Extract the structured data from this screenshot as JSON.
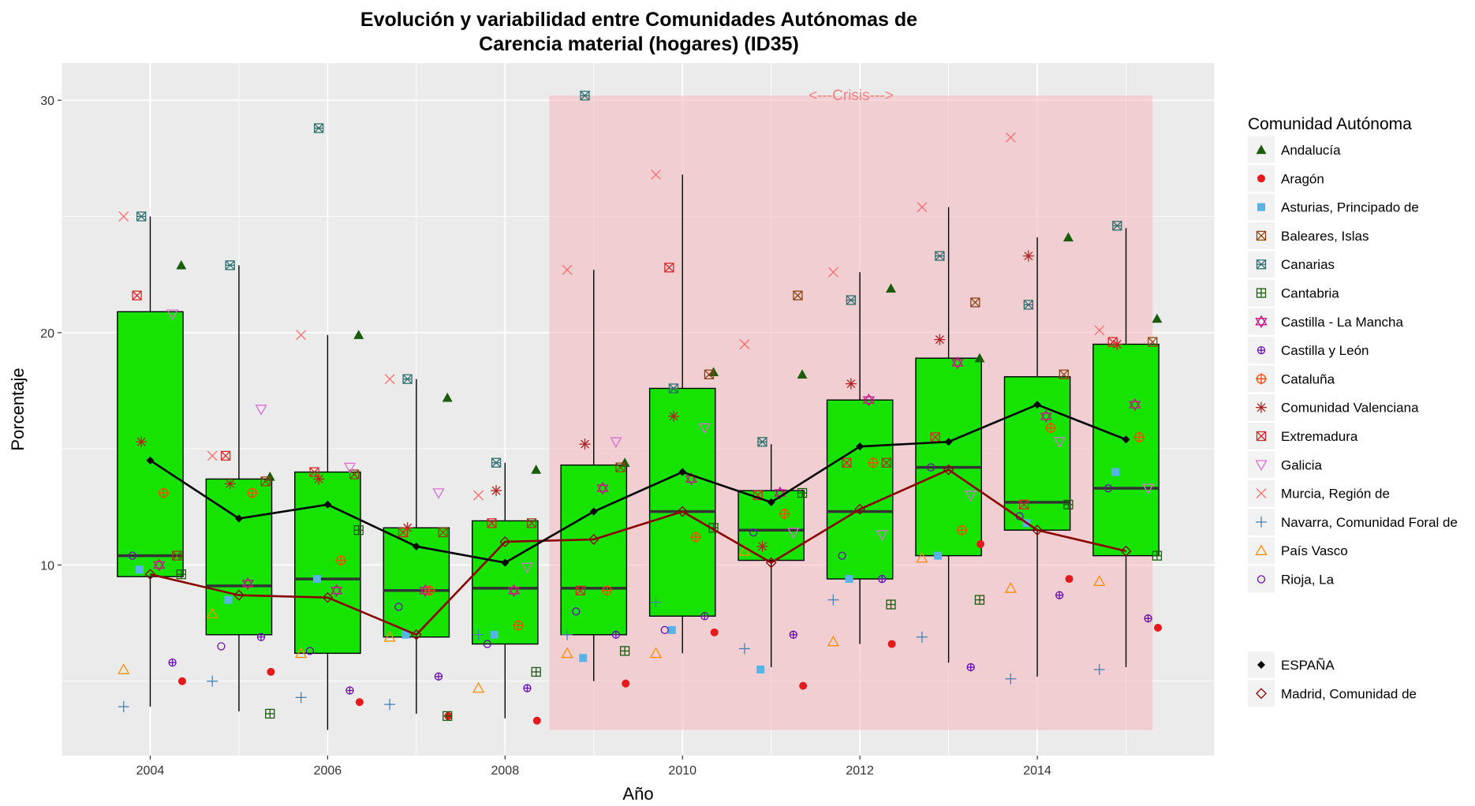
{
  "chart_data": {
    "type": "box",
    "title": [
      "Evolución y variabilidad entre Comunidades Autónomas de",
      "Carencia material (hogares) (ID35)"
    ],
    "xlabel": "Año",
    "ylabel": "Porcentaje",
    "xlim": [
      2003.0,
      2016.0
    ],
    "ylim": [
      1.8,
      31.6
    ],
    "x_ticks": [
      2004,
      2006,
      2008,
      2010,
      2012,
      2014
    ],
    "y_ticks": [
      10,
      20,
      30
    ],
    "grid": true,
    "legend_position": "right",
    "crisis_region": {
      "label": "<---Crisis--->",
      "x_from": 2008.5,
      "x_to": 2015.3,
      "y_from": 2.9,
      "y_to": 30.2,
      "color": "#f4b6bc"
    },
    "box_color": "#17e300",
    "boxes": [
      {
        "x": 2004,
        "q1": 9.5,
        "median": 10.4,
        "q3": 20.9,
        "whisker_low": 3.9,
        "whisker_high": 25.0
      },
      {
        "x": 2005,
        "q1": 7.0,
        "median": 9.1,
        "q3": 13.7,
        "whisker_low": 3.7,
        "whisker_high": 22.9
      },
      {
        "x": 2006,
        "q1": 6.2,
        "median": 9.4,
        "q3": 14.0,
        "whisker_low": 2.9,
        "whisker_high": 19.9
      },
      {
        "x": 2007,
        "q1": 6.9,
        "median": 8.9,
        "q3": 11.6,
        "whisker_low": 3.6,
        "whisker_high": 18.0
      },
      {
        "x": 2008,
        "q1": 6.6,
        "median": 9.0,
        "q3": 11.9,
        "whisker_low": 3.4,
        "whisker_high": 14.4
      },
      {
        "x": 2009,
        "q1": 7.0,
        "median": 9.0,
        "q3": 14.3,
        "whisker_low": 5.0,
        "whisker_high": 22.7
      },
      {
        "x": 2010,
        "q1": 7.8,
        "median": 12.3,
        "q3": 17.6,
        "whisker_low": 6.2,
        "whisker_high": 26.8
      },
      {
        "x": 2011,
        "q1": 10.2,
        "median": 11.5,
        "q3": 13.2,
        "whisker_low": 5.6,
        "whisker_high": 15.2
      },
      {
        "x": 2012,
        "q1": 9.4,
        "median": 12.3,
        "q3": 17.1,
        "whisker_low": 6.6,
        "whisker_high": 22.6
      },
      {
        "x": 2013,
        "q1": 10.4,
        "median": 14.2,
        "q3": 18.9,
        "whisker_low": 5.8,
        "whisker_high": 25.4
      },
      {
        "x": 2014,
        "q1": 11.5,
        "median": 12.7,
        "q3": 18.1,
        "whisker_low": 5.2,
        "whisker_high": 24.1
      },
      {
        "x": 2015,
        "q1": 10.4,
        "median": 13.3,
        "q3": 19.5,
        "whisker_low": 5.6,
        "whisker_high": 24.5
      }
    ],
    "lines": [
      {
        "name": "ESPAÑA",
        "color": "#000000",
        "marker": "diamond-filled",
        "x": [
          2004,
          2005,
          2006,
          2007,
          2008,
          2009,
          2010,
          2011,
          2012,
          2013,
          2014,
          2015
        ],
        "y": [
          14.5,
          12.0,
          12.6,
          10.8,
          10.1,
          12.3,
          14.0,
          12.7,
          15.1,
          15.3,
          16.9,
          15.4
        ]
      },
      {
        "name": "Madrid, Comunidad de",
        "color": "#8b0000",
        "marker": "diamond-open",
        "x": [
          2004,
          2005,
          2006,
          2007,
          2008,
          2009,
          2010,
          2011,
          2012,
          2013,
          2014,
          2015
        ],
        "y": [
          9.6,
          8.7,
          8.6,
          7.0,
          11.0,
          11.1,
          12.3,
          10.1,
          12.4,
          14.1,
          11.5,
          10.6
        ]
      }
    ],
    "series": [
      {
        "name": "Andalucía",
        "color": "#1a5c0a",
        "marker": "triangle-filled",
        "offset": 0.35,
        "x": [
          2004,
          2005,
          2006,
          2007,
          2008,
          2009,
          2010,
          2011,
          2012,
          2013,
          2014,
          2015
        ],
        "y": [
          22.9,
          13.8,
          19.9,
          17.2,
          14.1,
          14.4,
          18.3,
          18.2,
          21.9,
          18.9,
          24.1,
          20.6
        ]
      },
      {
        "name": "Aragón",
        "color": "#e41a1c",
        "marker": "circle-filled",
        "offset": 0.36,
        "x": [
          2004,
          2005,
          2006,
          2007,
          2008,
          2009,
          2010,
          2011,
          2012,
          2013,
          2014,
          2015
        ],
        "y": [
          5.0,
          5.4,
          4.1,
          3.5,
          3.3,
          4.9,
          7.1,
          4.8,
          6.6,
          10.9,
          9.4,
          7.3
        ]
      },
      {
        "name": "Asturias, Principado de",
        "color": "#56b4e9",
        "marker": "square-filled",
        "offset": -0.12,
        "x": [
          2004,
          2005,
          2006,
          2007,
          2008,
          2009,
          2010,
          2011,
          2012,
          2013,
          2014,
          2015
        ],
        "y": [
          9.8,
          8.5,
          9.4,
          7.0,
          7.0,
          6.0,
          7.2,
          5.5,
          9.4,
          10.4,
          11.8,
          14.0
        ]
      },
      {
        "name": "Baleares, Islas",
        "color": "#8b4513",
        "marker": "square-x",
        "offset": 0.3,
        "x": [
          2004,
          2005,
          2006,
          2007,
          2008,
          2009,
          2010,
          2011,
          2012,
          2013,
          2014,
          2015
        ],
        "y": [
          10.4,
          13.6,
          13.9,
          11.4,
          11.8,
          14.2,
          18.2,
          21.6,
          14.4,
          21.3,
          18.2,
          19.6
        ]
      },
      {
        "name": "Canarias",
        "color": "#2f6f6f",
        "marker": "square-cross",
        "offset": -0.1,
        "x": [
          2004,
          2005,
          2006,
          2007,
          2008,
          2009,
          2010,
          2011,
          2012,
          2013,
          2014,
          2015
        ],
        "y": [
          25.0,
          22.9,
          28.8,
          18.0,
          14.4,
          30.2,
          17.6,
          15.3,
          21.4,
          23.3,
          21.2,
          24.6
        ]
      },
      {
        "name": "Cantabria",
        "color": "#1a5c0a",
        "marker": "square-plus",
        "offset": 0.35,
        "x": [
          2004,
          2005,
          2006,
          2007,
          2008,
          2009,
          2010,
          2011,
          2012,
          2013,
          2014,
          2015
        ],
        "y": [
          9.6,
          3.6,
          11.5,
          3.5,
          5.4,
          6.3,
          11.6,
          13.1,
          8.3,
          8.5,
          12.6,
          10.4
        ]
      },
      {
        "name": "Castilla - La Mancha",
        "color": "#c71585",
        "marker": "star-david",
        "offset": 0.1,
        "x": [
          2004,
          2005,
          2006,
          2007,
          2008,
          2009,
          2010,
          2011,
          2012,
          2013,
          2014,
          2015
        ],
        "y": [
          10.0,
          9.2,
          8.9,
          8.9,
          8.9,
          13.3,
          13.7,
          13.1,
          17.1,
          18.7,
          16.4,
          16.9
        ]
      },
      {
        "name": "Castilla y León",
        "color": "#6a0dad",
        "marker": "circle-plus",
        "offset": 0.25,
        "x": [
          2004,
          2005,
          2006,
          2007,
          2008,
          2009,
          2010,
          2011,
          2012,
          2013,
          2014,
          2015
        ],
        "y": [
          5.8,
          6.9,
          4.6,
          5.2,
          4.7,
          7.0,
          7.8,
          7.0,
          9.4,
          5.6,
          8.7,
          7.7
        ]
      },
      {
        "name": "Cataluña",
        "color": "#ff4500",
        "marker": "circle-cross",
        "offset": 0.15,
        "x": [
          2004,
          2005,
          2006,
          2007,
          2008,
          2009,
          2010,
          2011,
          2012,
          2013,
          2014,
          2015
        ],
        "y": [
          13.1,
          13.1,
          10.2,
          8.9,
          7.4,
          8.9,
          11.2,
          12.2,
          14.4,
          11.5,
          15.9,
          15.5
        ]
      },
      {
        "name": "Comunidad Valenciana",
        "color": "#b22222",
        "marker": "asterisk",
        "offset": -0.1,
        "x": [
          2004,
          2005,
          2006,
          2007,
          2008,
          2009,
          2010,
          2011,
          2012,
          2013,
          2014,
          2015
        ],
        "y": [
          15.3,
          13.5,
          13.7,
          11.6,
          13.2,
          15.2,
          16.4,
          10.8,
          17.8,
          19.7,
          23.3,
          19.5
        ]
      },
      {
        "name": "Extremadura",
        "color": "#d62728",
        "marker": "square-x",
        "offset": -0.15,
        "x": [
          2004,
          2005,
          2006,
          2007,
          2008,
          2009,
          2010,
          2011,
          2012,
          2013,
          2014,
          2015
        ],
        "y": [
          21.6,
          14.7,
          14.0,
          11.4,
          11.8,
          8.9,
          22.8,
          13.0,
          14.4,
          15.5,
          12.6,
          19.6
        ]
      },
      {
        "name": "Galicia",
        "color": "#da70d6",
        "marker": "triangle-down-open",
        "offset": 0.25,
        "x": [
          2004,
          2005,
          2006,
          2007,
          2008,
          2009,
          2010,
          2011,
          2012,
          2013,
          2014,
          2015
        ],
        "y": [
          20.8,
          16.7,
          14.2,
          13.1,
          9.9,
          15.3,
          15.9,
          11.4,
          11.3,
          13.0,
          15.3,
          13.3
        ]
      },
      {
        "name": "Murcia, Región de",
        "color": "#ff6b6b",
        "marker": "cross-x",
        "offset": -0.3,
        "x": [
          2004,
          2005,
          2006,
          2007,
          2008,
          2009,
          2010,
          2011,
          2012,
          2013,
          2014,
          2015
        ],
        "y": [
          25.0,
          14.7,
          19.9,
          18.0,
          13.0,
          22.7,
          26.8,
          19.5,
          22.6,
          25.4,
          28.4,
          20.1
        ]
      },
      {
        "name": "Navarra, Comunidad Foral de",
        "color": "#4682b4",
        "marker": "plus",
        "offset": -0.3,
        "x": [
          2004,
          2005,
          2006,
          2007,
          2008,
          2009,
          2010,
          2011,
          2012,
          2013,
          2014,
          2015
        ],
        "y": [
          3.9,
          5.0,
          4.3,
          4.0,
          7.0,
          7.0,
          8.4,
          6.4,
          8.5,
          6.9,
          5.1,
          5.5
        ]
      },
      {
        "name": "País Vasco",
        "color": "#ff8c00",
        "marker": "triangle-open",
        "offset": -0.3,
        "x": [
          2004,
          2005,
          2006,
          2007,
          2008,
          2009,
          2010,
          2011,
          2012,
          2013,
          2014,
          2015
        ],
        "y": [
          5.5,
          7.9,
          6.2,
          6.9,
          4.7,
          6.2,
          6.2,
          10.6,
          6.7,
          10.3,
          9.0,
          9.3
        ]
      },
      {
        "name": "Rioja, La",
        "color": "#6a0dad",
        "marker": "circle-open",
        "offset": -0.2,
        "x": [
          2004,
          2005,
          2006,
          2007,
          2008,
          2009,
          2010,
          2011,
          2012,
          2013,
          2014,
          2015
        ],
        "y": [
          10.4,
          6.5,
          6.3,
          8.2,
          6.6,
          8.0,
          7.2,
          11.4,
          10.4,
          14.2,
          12.1,
          13.3
        ]
      }
    ]
  },
  "legend": {
    "title": "Comunidad Autónoma"
  }
}
